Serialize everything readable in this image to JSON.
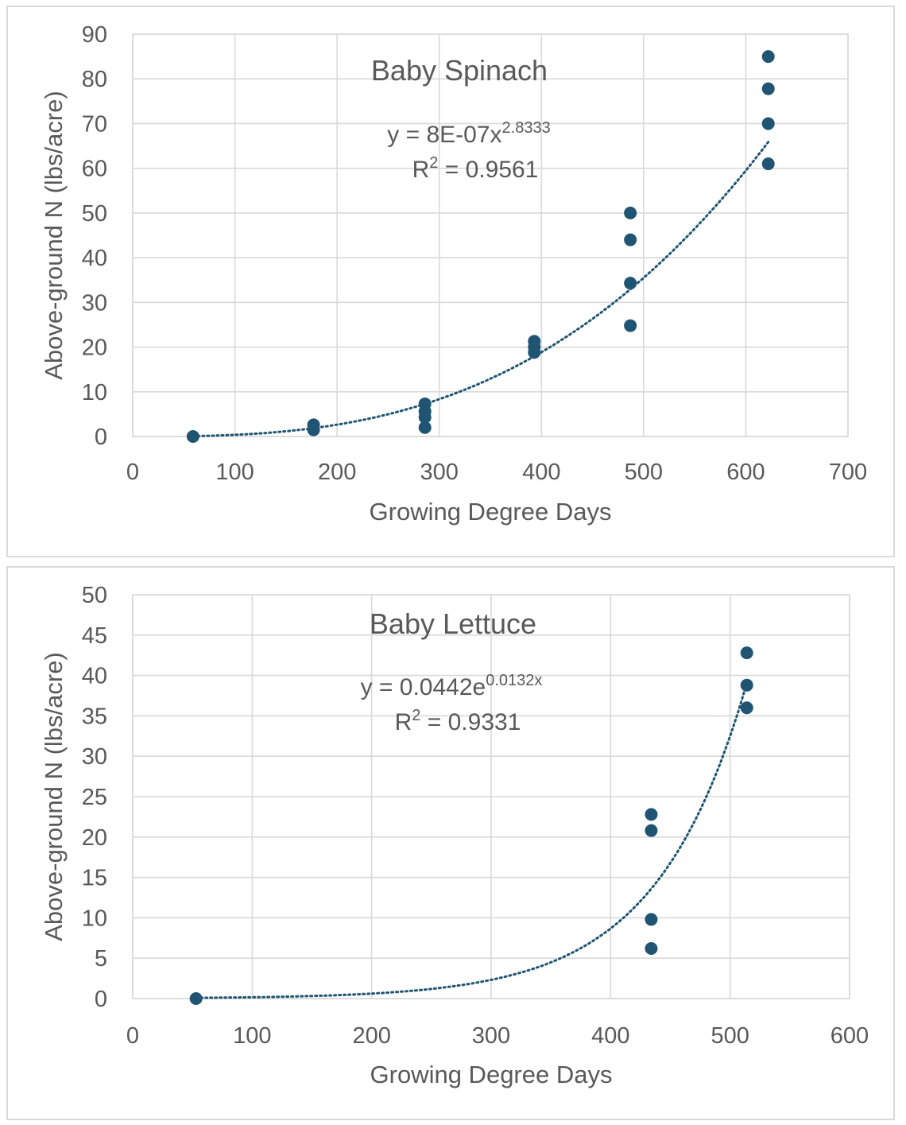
{
  "chart_data": [
    {
      "type": "scatter",
      "title": "Baby Spinach",
      "xlabel": "Growing Degree Days",
      "ylabel": "Above-ground N (lbs/acre)",
      "xlim": [
        0,
        700
      ],
      "ylim": [
        0,
        90
      ],
      "x_ticks": [
        0,
        100,
        200,
        300,
        400,
        500,
        600,
        700
      ],
      "y_ticks": [
        0,
        10,
        20,
        30,
        40,
        50,
        60,
        70,
        80,
        90
      ],
      "grid": true,
      "points": [
        {
          "x": 59,
          "y": 0
        },
        {
          "x": 177,
          "y": 1.5
        },
        {
          "x": 177,
          "y": 2.6
        },
        {
          "x": 286,
          "y": 2
        },
        {
          "x": 286,
          "y": 4.3
        },
        {
          "x": 286,
          "y": 5.6
        },
        {
          "x": 286,
          "y": 7.3
        },
        {
          "x": 393,
          "y": 18.8
        },
        {
          "x": 393,
          "y": 20
        },
        {
          "x": 393,
          "y": 21.3
        },
        {
          "x": 487,
          "y": 24.8
        },
        {
          "x": 487,
          "y": 34.3
        },
        {
          "x": 487,
          "y": 44
        },
        {
          "x": 487,
          "y": 50
        },
        {
          "x": 622,
          "y": 61
        },
        {
          "x": 622,
          "y": 70
        },
        {
          "x": 622,
          "y": 77.8
        },
        {
          "x": 622,
          "y": 85
        }
      ],
      "trendline": {
        "type": "power",
        "a": 8e-07,
        "b": 2.8333,
        "x_range": [
          59,
          622
        ]
      },
      "equation": {
        "base": "y = 8E-07x",
        "sup": "2.8333"
      },
      "r_squared": {
        "prefix": "R",
        "sup": "2",
        "suffix": " = 0.9561"
      },
      "colors": {
        "marker": "#1f5573",
        "grid": "#d9d9d9",
        "text": "#595959"
      }
    },
    {
      "type": "scatter",
      "title": "Baby Lettuce",
      "xlabel": "Growing Degree Days",
      "ylabel": "Above-ground N (lbs/acre)",
      "xlim": [
        0,
        600
      ],
      "ylim": [
        0,
        50
      ],
      "x_ticks": [
        0,
        100,
        200,
        300,
        400,
        500,
        600
      ],
      "y_ticks": [
        0,
        5,
        10,
        15,
        20,
        25,
        30,
        35,
        40,
        45,
        50
      ],
      "grid": true,
      "points": [
        {
          "x": 53,
          "y": 0
        },
        {
          "x": 434,
          "y": 6.2
        },
        {
          "x": 434,
          "y": 9.8
        },
        {
          "x": 434,
          "y": 20.8
        },
        {
          "x": 434,
          "y": 22.8
        },
        {
          "x": 514,
          "y": 36
        },
        {
          "x": 514,
          "y": 38.8
        },
        {
          "x": 514,
          "y": 42.8
        }
      ],
      "trendline": {
        "type": "exponential",
        "a": 0.0442,
        "b": 0.0132,
        "x_range": [
          53,
          514
        ]
      },
      "equation": {
        "base": "y = 0.0442e",
        "sup": "0.0132x"
      },
      "r_squared": {
        "prefix": "R",
        "sup": "2",
        "suffix": " = 0.9331"
      },
      "colors": {
        "marker": "#1f5573",
        "grid": "#d9d9d9",
        "text": "#595959"
      }
    }
  ]
}
